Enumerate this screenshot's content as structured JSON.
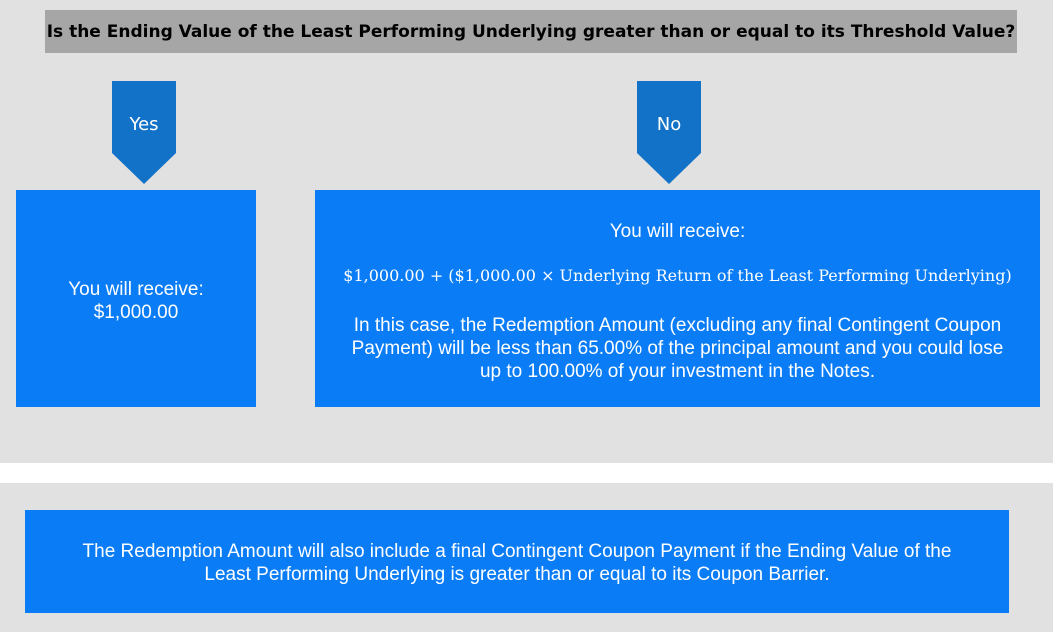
{
  "question": "Is the Ending Value of the Least Performing Underlying greater than or equal to its Threshold Value?",
  "yes_branch": {
    "label": "Yes",
    "receive_label": "You will receive:",
    "amount": "$1,000.00"
  },
  "no_branch": {
    "label": "No",
    "receive_label": "You will receive:",
    "formula": "$1,000.00 + ($1,000.00 × Underlying Return of the Least Performing Underlying)",
    "explanation_line1": "In this case, the Redemption Amount (excluding any final Contingent Coupon",
    "explanation_line2": "Payment) will be less than 65.00% of the principal amount and you could lose",
    "explanation_line3": "up to 100.00% of your investment in the Notes."
  },
  "note": {
    "line1": "The Redemption Amount will also include a final Contingent Coupon Payment if the Ending Value of the",
    "line2": "Least Performing Underlying is greater than or equal to its Coupon Barrier."
  },
  "colors": {
    "box_blue": "#0a7cf5",
    "arrow_blue": "#1272c8",
    "question_gray": "#a6a6a6",
    "panel_gray": "#e1e1e1"
  }
}
